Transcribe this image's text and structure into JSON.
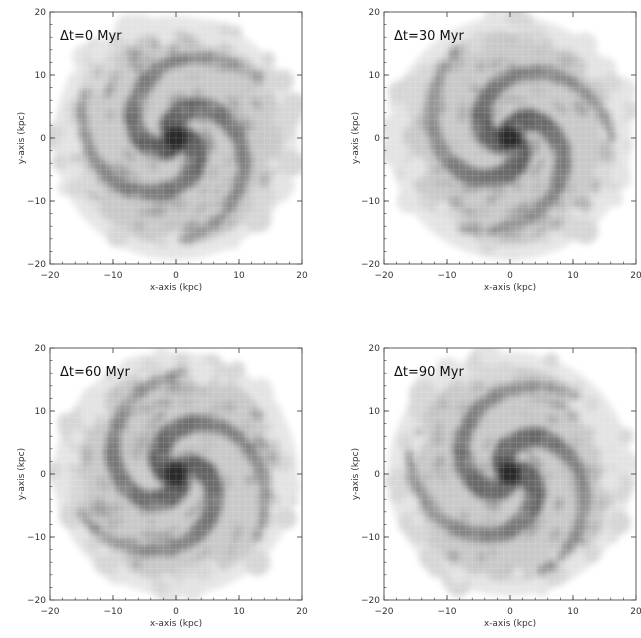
{
  "figure": {
    "x_axis_label": "x-axis (kpc)",
    "y_axis_label": "y-axis (kpc)"
  },
  "chart_data": [
    {
      "type": "heatmap",
      "annotation": "Δt=0 Myr",
      "xlabel": "x-axis (kpc)",
      "ylabel": "y-axis (kpc)",
      "xlim": [
        -20,
        20
      ],
      "ylim": [
        -20,
        20
      ],
      "xticks": [
        -20,
        -10,
        0,
        10,
        20
      ],
      "yticks": [
        -20,
        -10,
        0,
        10,
        20
      ],
      "time_myr": 0,
      "disk_radius_kpc": 19,
      "arm_count": 3,
      "arm_phase_deg": 0,
      "colormap": "grayscale, darker = denser",
      "grid": true
    },
    {
      "type": "heatmap",
      "annotation": "Δt=30 Myr",
      "xlabel": "x-axis (kpc)",
      "ylabel": "y-axis (kpc)",
      "xlim": [
        -20,
        20
      ],
      "ylim": [
        -20,
        20
      ],
      "xticks": [
        -20,
        -10,
        0,
        10,
        20
      ],
      "yticks": [
        -20,
        -10,
        0,
        10,
        20
      ],
      "time_myr": 30,
      "disk_radius_kpc": 19,
      "arm_count": 3,
      "arm_phase_deg": 35,
      "colormap": "grayscale, darker = denser",
      "grid": true
    },
    {
      "type": "heatmap",
      "annotation": "Δt=60 Myr",
      "xlabel": "x-axis (kpc)",
      "ylabel": "y-axis (kpc)",
      "xlim": [
        -20,
        20
      ],
      "ylim": [
        -20,
        20
      ],
      "xticks": [
        -20,
        -10,
        0,
        10,
        20
      ],
      "yticks": [
        -20,
        -10,
        0,
        10,
        20
      ],
      "time_myr": 60,
      "disk_radius_kpc": 19,
      "arm_count": 3,
      "arm_phase_deg": 70,
      "colormap": "grayscale, darker = denser",
      "grid": true
    },
    {
      "type": "heatmap",
      "annotation": "Δt=90 Myr",
      "xlabel": "x-axis (kpc)",
      "ylabel": "y-axis (kpc)",
      "xlim": [
        -20,
        20
      ],
      "ylim": [
        -20,
        20
      ],
      "xticks": [
        -20,
        -10,
        0,
        10,
        20
      ],
      "yticks": [
        -20,
        -10,
        0,
        10,
        20
      ],
      "time_myr": 90,
      "disk_radius_kpc": 19,
      "arm_count": 3,
      "arm_phase_deg": 105,
      "colormap": "grayscale, darker = denser",
      "grid": true
    }
  ]
}
